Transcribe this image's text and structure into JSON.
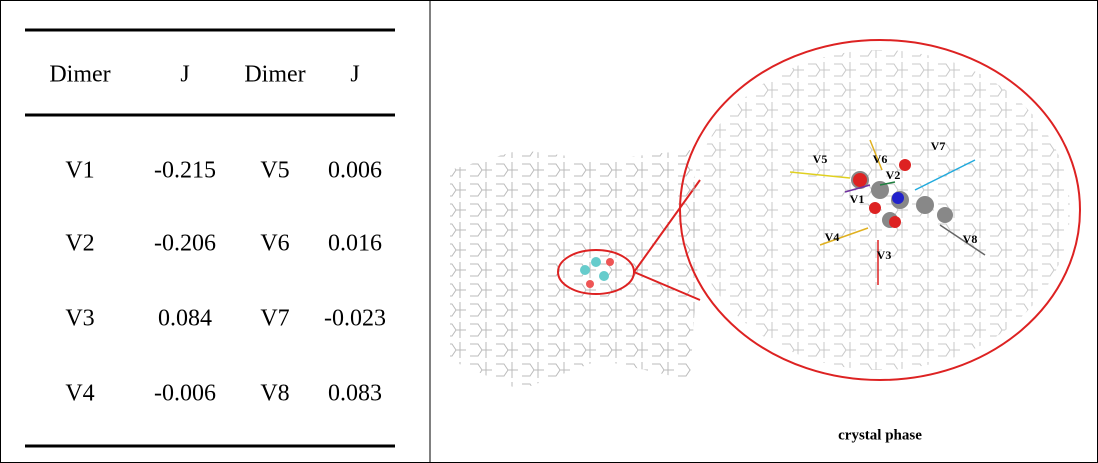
{
  "table": {
    "header": [
      "Dimer",
      "J",
      "Dimer",
      "J"
    ],
    "rows": [
      [
        "V1",
        -0.215,
        "V5",
        0.006
      ],
      [
        "V2",
        -0.206,
        "V6",
        0.016
      ],
      [
        "V3",
        0.084,
        "V7",
        -0.023
      ],
      [
        "V4",
        -0.006,
        "V8",
        0.083
      ]
    ]
  },
  "figure": {
    "labels": [
      "V1",
      "V2",
      "V3",
      "V4",
      "V5",
      "V6",
      "V7",
      "V8"
    ],
    "caption": "crystal phase"
  }
}
